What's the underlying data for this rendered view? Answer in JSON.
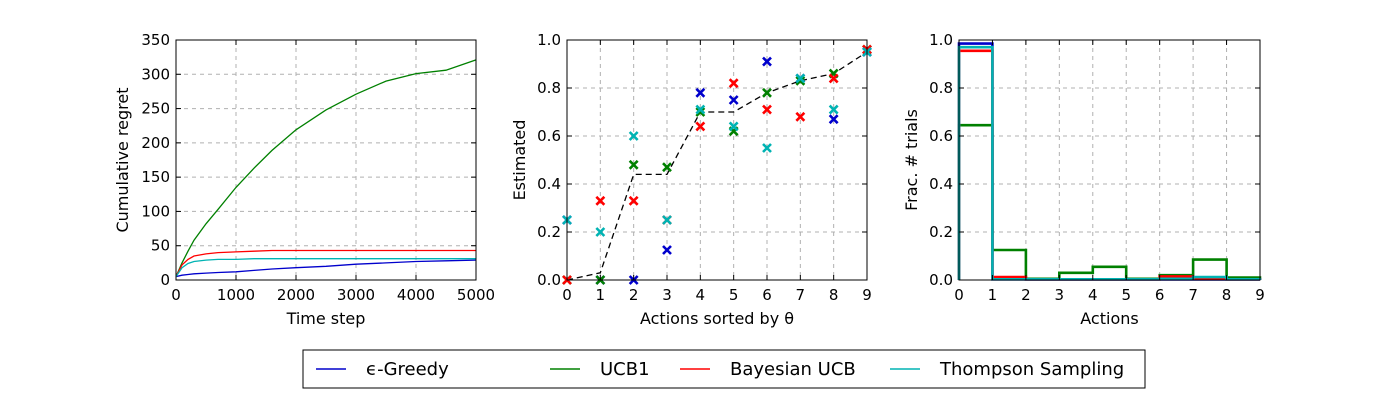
{
  "colors": {
    "epsilon_greedy": "#0000cc",
    "ucb1": "#008000",
    "bayesian_ucb": "#ff0000",
    "thompson": "#00b3b3",
    "true_theta": "#000000"
  },
  "legend": {
    "placement": "bottom-center",
    "entries": [
      {
        "key": "epsilon_greedy",
        "label": "ϵ-Greedy"
      },
      {
        "key": "ucb1",
        "label": "UCB1"
      },
      {
        "key": "bayesian_ucb",
        "label": "Bayesian UCB"
      },
      {
        "key": "thompson",
        "label": "Thompson Sampling"
      }
    ]
  },
  "chart_data": [
    {
      "type": "line",
      "xlabel": "Time step",
      "ylabel": "Cumulative regret",
      "xlim": [
        0,
        5000
      ],
      "ylim": [
        0,
        350
      ],
      "xticks": [
        "0",
        "1000",
        "2000",
        "3000",
        "4000",
        "5000"
      ],
      "yticks": [
        "0",
        "50",
        "100",
        "150",
        "200",
        "250",
        "300",
        "350"
      ],
      "xtick_values": [
        0,
        1000,
        2000,
        3000,
        4000,
        5000
      ],
      "ytick_values": [
        0,
        50,
        100,
        150,
        200,
        250,
        300,
        350
      ],
      "grid": true,
      "x": [
        0,
        100,
        200,
        300,
        500,
        700,
        1000,
        1300,
        1600,
        2000,
        2500,
        3000,
        3500,
        4000,
        4500,
        5000
      ],
      "series": [
        {
          "key": "epsilon_greedy",
          "values": [
            5,
            7,
            8,
            9,
            10,
            11,
            12,
            14,
            16,
            18,
            20,
            23,
            25,
            27,
            28,
            29
          ]
        },
        {
          "key": "ucb1",
          "values": [
            5,
            25,
            42,
            58,
            82,
            103,
            135,
            163,
            189,
            219,
            248,
            271,
            290,
            301,
            306,
            321
          ]
        },
        {
          "key": "bayesian_ucb",
          "values": [
            5,
            22,
            30,
            35,
            38,
            40,
            41,
            42,
            43,
            43,
            43,
            43,
            43,
            43,
            43,
            43
          ]
        },
        {
          "key": "thompson",
          "values": [
            5,
            18,
            24,
            27,
            29,
            30,
            30,
            31,
            31,
            31,
            31,
            31,
            31,
            31,
            31,
            31
          ]
        }
      ]
    },
    {
      "type": "scatter",
      "xlabel": "Actions sorted by θ",
      "ylabel": "Estimated",
      "xlim": [
        0,
        9
      ],
      "ylim": [
        0,
        1.0
      ],
      "xticks": [
        "0",
        "1",
        "2",
        "3",
        "4",
        "5",
        "6",
        "7",
        "8",
        "9"
      ],
      "yticks": [
        "0.0",
        "0.2",
        "0.4",
        "0.6",
        "0.8",
        "1.0"
      ],
      "xtick_values": [
        0,
        1,
        2,
        3,
        4,
        5,
        6,
        7,
        8,
        9
      ],
      "ytick_values": [
        0,
        0.2,
        0.4,
        0.6,
        0.8,
        1.0
      ],
      "grid": true,
      "x": [
        0,
        1,
        2,
        3,
        4,
        5,
        6,
        7,
        8,
        9
      ],
      "true_theta": {
        "key": "true_theta",
        "x": [
          0,
          1,
          2,
          3,
          4,
          5,
          6,
          7,
          8,
          9
        ],
        "values": [
          0.0,
          0.03,
          0.44,
          0.44,
          0.7,
          0.7,
          0.78,
          0.83,
          0.86,
          0.95
        ]
      },
      "series": [
        {
          "key": "epsilon_greedy",
          "values": [
            0.25,
            0.0,
            0.0,
            0.125,
            0.78,
            0.75,
            0.91,
            0.84,
            0.67,
            0.95
          ]
        },
        {
          "key": "ucb1",
          "values": [
            0.0,
            0.0,
            0.48,
            0.47,
            0.7,
            0.62,
            0.78,
            0.83,
            0.86,
            0.96
          ]
        },
        {
          "key": "bayesian_ucb",
          "values": [
            0.0,
            0.33,
            0.33,
            0.25,
            0.64,
            0.82,
            0.71,
            0.68,
            0.84,
            0.96
          ]
        },
        {
          "key": "thompson",
          "values": [
            0.25,
            0.2,
            0.6,
            0.25,
            0.71,
            0.64,
            0.55,
            0.84,
            0.71,
            0.95
          ]
        }
      ]
    },
    {
      "type": "bar",
      "style": "step-histogram",
      "xlabel": "Actions",
      "ylabel": "Frac. # trials",
      "xlim": [
        0,
        9
      ],
      "ylim": [
        0,
        1.0
      ],
      "xticks": [
        "0",
        "1",
        "2",
        "3",
        "4",
        "5",
        "6",
        "7",
        "8",
        "9"
      ],
      "yticks": [
        "0.0",
        "0.2",
        "0.4",
        "0.6",
        "0.8",
        "1.0"
      ],
      "xtick_values": [
        0,
        1,
        2,
        3,
        4,
        5,
        6,
        7,
        8,
        9
      ],
      "ytick_values": [
        0,
        0.2,
        0.4,
        0.6,
        0.8,
        1.0
      ],
      "grid": true,
      "categories": [
        "0",
        "1",
        "2",
        "3",
        "4",
        "5",
        "6",
        "7",
        "8"
      ],
      "series": [
        {
          "key": "ucb1",
          "values": [
            0.645,
            0.125,
            0.005,
            0.03,
            0.055,
            0.005,
            0.02,
            0.085,
            0.01
          ]
        },
        {
          "key": "epsilon_greedy",
          "values": [
            0.985,
            0.003,
            0.002,
            0.002,
            0.002,
            0.002,
            0.002,
            0.002,
            0.002
          ]
        },
        {
          "key": "bayesian_ucb",
          "values": [
            0.955,
            0.012,
            0.003,
            0.003,
            0.003,
            0.003,
            0.015,
            0.005,
            0.003
          ]
        },
        {
          "key": "thompson",
          "values": [
            0.97,
            0.003,
            0.003,
            0.003,
            0.003,
            0.003,
            0.005,
            0.012,
            0.003
          ]
        }
      ]
    }
  ]
}
